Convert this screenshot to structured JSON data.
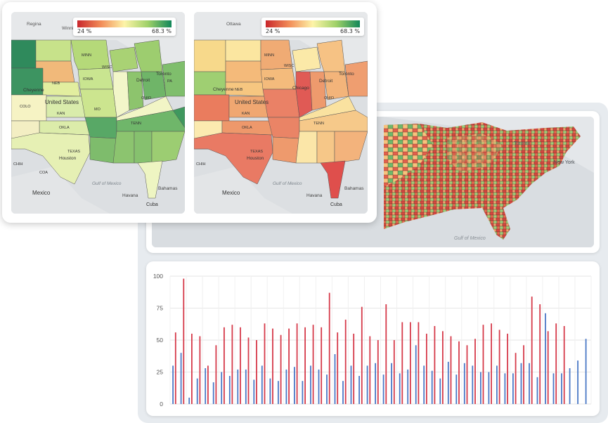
{
  "maps": [
    {
      "legend_min": "24 %",
      "legend_max": "68.3 %",
      "place_labels": [
        "Regina",
        "Winnipeg",
        "Toronto",
        "Ottawa",
        "Chicago",
        "Detroit",
        "Houston",
        "Mexico",
        "Gulf of Mexico",
        "Havana",
        "Bahamas",
        "Cuba",
        "Cheyenne",
        "United States",
        "Chicago",
        "Nashville",
        "Ile"
      ],
      "state_labels": [
        "NEB",
        "IOWA",
        "MINN",
        "WISC",
        "MICH",
        "OHIO",
        "PA",
        "KAN",
        "MO",
        "ILL",
        "IND",
        "TENN",
        "KY",
        "VA",
        "W VA",
        "N.C.",
        "S.C.",
        "GA",
        "ALA",
        "MISS",
        "LA",
        "ARK",
        "OKLA",
        "TEXAS",
        "COLO",
        "WYO",
        "S.D.",
        "N.D.",
        "N.Y.",
        "CHIH",
        "COA",
        "N.L.",
        "TAM",
        "S.L.P.",
        "DGO",
        "SIN",
        "NAY"
      ]
    },
    {
      "legend_min": "24 %",
      "legend_max": "68.3 %",
      "place_labels": [
        "Ottawa",
        "Toronto",
        "Detroit",
        "Chicago",
        "Cheyenne",
        "United States",
        "Houston",
        "Mexico",
        "Gulf of Mexico",
        "Havana",
        "Bahamas",
        "Cuba"
      ],
      "state_labels": [
        "NEB",
        "IOWA",
        "MINN",
        "WISC",
        "MICH",
        "OHIO",
        "PA",
        "KAN",
        "MO",
        "ILL",
        "IND",
        "TENN",
        "KY",
        "W VA",
        "VA",
        "N.C.",
        "S.C.",
        "GA",
        "ALA",
        "MISS",
        "LA",
        "ARK",
        "OKLA",
        "TEXAS",
        "COLO",
        "N.Y.",
        "CHIH",
        "COA",
        "N.L.",
        "TAM",
        "S.L.P.",
        "DGO",
        "SIN"
      ]
    }
  ],
  "county_map": {
    "place_labels": [
      "Toronto",
      "New York",
      "Gulf of Mexico",
      "Havana",
      "Bahamas",
      "Cuba",
      "Mexico"
    ]
  },
  "colors": {
    "red": "#d63a4a",
    "blue": "#4a78c6",
    "scale_low": "#c9272c",
    "scale_mid": "#fdf4a8",
    "scale_high": "#11875a"
  },
  "chart_data": {
    "type": "bar",
    "ylim": [
      0,
      100
    ],
    "yticks": [
      0,
      25,
      50,
      75,
      100
    ],
    "grid": true,
    "series": [
      {
        "values": [
          30,
          40,
          5,
          20,
          28,
          17,
          25,
          22,
          27,
          27,
          19,
          30,
          20,
          18,
          27,
          29,
          18,
          30,
          27,
          23,
          39,
          18,
          30,
          22,
          30,
          32,
          23,
          32,
          24,
          27,
          46,
          30,
          26,
          20,
          33,
          23,
          32,
          30,
          25,
          25,
          30,
          24,
          24,
          32,
          32,
          21,
          71,
          24,
          24,
          28,
          34,
          51
        ]
      },
      {
        "values": [
          56,
          98,
          55,
          53,
          30,
          46,
          60,
          62,
          60,
          52,
          50,
          63,
          59,
          54,
          59,
          63,
          60,
          62,
          60,
          87,
          56,
          66,
          55,
          76,
          53,
          50,
          78,
          50,
          64,
          64,
          64,
          55,
          61,
          57,
          53,
          49,
          46,
          51,
          62,
          63,
          58,
          55,
          40,
          46,
          84,
          78,
          57,
          63,
          61
        ]
      }
    ]
  }
}
